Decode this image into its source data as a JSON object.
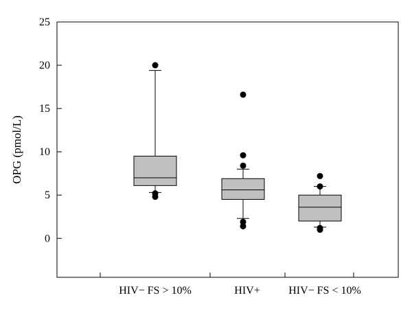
{
  "chart_data": {
    "type": "box",
    "title": "",
    "xlabel": "",
    "ylabel": "OPG (pmol/L)",
    "ylim": [
      -4.5,
      25
    ],
    "yticks": [
      0,
      5,
      10,
      15,
      20,
      25
    ],
    "grid": false,
    "categories": [
      "HIV− FS > 10%",
      "HIV+",
      "HIV− FS < 10%"
    ],
    "boxes": [
      {
        "category": "HIV− FS > 10%",
        "whisker_low": 5.3,
        "q1": 6.1,
        "median": 7.0,
        "q3": 9.5,
        "whisker_high": 19.4,
        "outliers": [
          20.0,
          5.2,
          4.8
        ]
      },
      {
        "category": "HIV+",
        "whisker_low": 2.3,
        "q1": 4.5,
        "median": 5.6,
        "q3": 6.9,
        "whisker_high": 8.0,
        "outliers": [
          16.6,
          9.6,
          8.4,
          1.9,
          1.4
        ]
      },
      {
        "category": "HIV− FS < 10%",
        "whisker_low": 1.3,
        "q1": 2.0,
        "median": 3.6,
        "q3": 5.0,
        "whisker_high": 6.0,
        "outliers": [
          7.2,
          6.0,
          1.2,
          1.0
        ]
      }
    ],
    "colors": {
      "box_fill": "#c0c0c0",
      "stroke": "#000000",
      "outlier": "#000000"
    }
  }
}
